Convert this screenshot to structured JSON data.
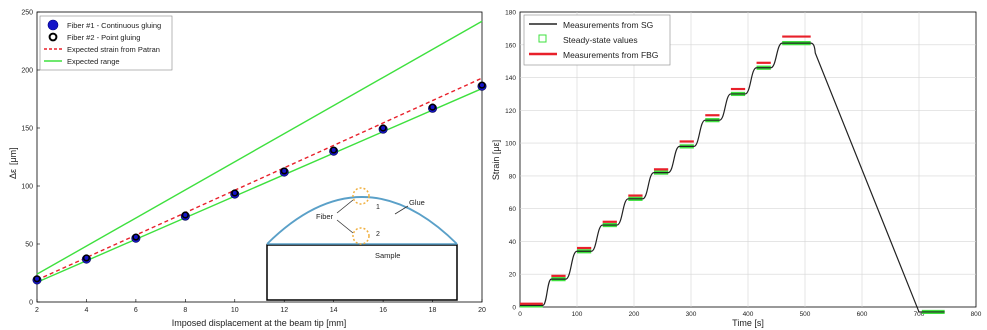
{
  "chart_data": [
    {
      "type": "line",
      "title": "",
      "xlabel": "Imposed displacement at the beam tip [mm]",
      "ylabel_main": "Δε",
      "ylabel_unit": "[μm]",
      "xlim": [
        2,
        20
      ],
      "ylim": [
        0,
        250
      ],
      "xticks": [
        2,
        4,
        6,
        8,
        10,
        12,
        14,
        16,
        18,
        20
      ],
      "yticks": [
        0,
        50,
        100,
        150,
        200,
        250
      ],
      "grid": false,
      "legend_position": "top-left",
      "series": [
        {
          "name": "Fiber #1 - Continuous gluing",
          "kind": "marker-filled",
          "color": "#1414c8",
          "x": [
            2,
            4,
            6,
            8,
            10,
            12,
            14,
            16,
            18,
            20
          ],
          "y": [
            19,
            37,
            55,
            74,
            93,
            112,
            130,
            149,
            167,
            186
          ]
        },
        {
          "name": "Fiber #2 - Point gluing",
          "kind": "marker-open",
          "color": "#000000",
          "x": [
            2,
            4,
            6,
            8,
            10,
            12,
            14,
            16,
            18,
            20
          ],
          "y": [
            20,
            38,
            56,
            75,
            94,
            113,
            131,
            150,
            168,
            187
          ]
        },
        {
          "name": "Expected strain from Patran",
          "kind": "dashed",
          "color": "#e8202a",
          "x": [
            2,
            20
          ],
          "y": [
            19,
            193
          ]
        },
        {
          "name": "Expected range",
          "kind": "solid",
          "color": "#3ee03e",
          "x": [
            2,
            20
          ],
          "y": [
            17,
            184
          ]
        },
        {
          "name": "",
          "kind": "solid",
          "color": "#3ee03e",
          "x": [
            2,
            20
          ],
          "y": [
            24,
            242
          ]
        }
      ],
      "inset": {
        "labels": {
          "fiber": "Fiber",
          "glue": "Glue",
          "sample": "Sample",
          "one": "1",
          "two": "2"
        }
      }
    },
    {
      "type": "line",
      "title": "",
      "xlabel": "Time [s]",
      "ylabel": "Strain [με]",
      "xlim": [
        0,
        800
      ],
      "ylim": [
        0,
        180
      ],
      "xticks": [
        0,
        100,
        200,
        300,
        400,
        500,
        600,
        700,
        800
      ],
      "yticks": [
        0,
        20,
        40,
        60,
        80,
        100,
        120,
        140,
        160,
        180
      ],
      "grid": true,
      "legend_position": "top-left",
      "legend": [
        {
          "name": "Measurements from SG",
          "kind": "line",
          "color": "#222222"
        },
        {
          "name": "Steady-state values",
          "kind": "square-open",
          "color": "#3ee03e"
        },
        {
          "name": "Measurements from FBG",
          "kind": "thick-line",
          "color": "#e8202a"
        }
      ],
      "steps": [
        {
          "t0": 0,
          "t1": 40,
          "sg": 1,
          "fbg": 2
        },
        {
          "t0": 55,
          "t1": 80,
          "sg": 17,
          "fbg": 19
        },
        {
          "t0": 100,
          "t1": 125,
          "sg": 34,
          "fbg": 36
        },
        {
          "t0": 145,
          "t1": 170,
          "sg": 50,
          "fbg": 52
        },
        {
          "t0": 190,
          "t1": 215,
          "sg": 66,
          "fbg": 68
        },
        {
          "t0": 235,
          "t1": 260,
          "sg": 82,
          "fbg": 84
        },
        {
          "t0": 280,
          "t1": 305,
          "sg": 98,
          "fbg": 101
        },
        {
          "t0": 325,
          "t1": 350,
          "sg": 114,
          "fbg": 117
        },
        {
          "t0": 370,
          "t1": 395,
          "sg": 130,
          "fbg": 133
        },
        {
          "t0": 415,
          "t1": 440,
          "sg": 146,
          "fbg": 149
        },
        {
          "t0": 460,
          "t1": 510,
          "sg": 161,
          "fbg": 165
        }
      ],
      "ramp_down": {
        "t_start": 510,
        "t_end": 700,
        "y_end": -3
      },
      "final": {
        "t0": 705,
        "t1": 745,
        "sg": -3
      }
    }
  ]
}
